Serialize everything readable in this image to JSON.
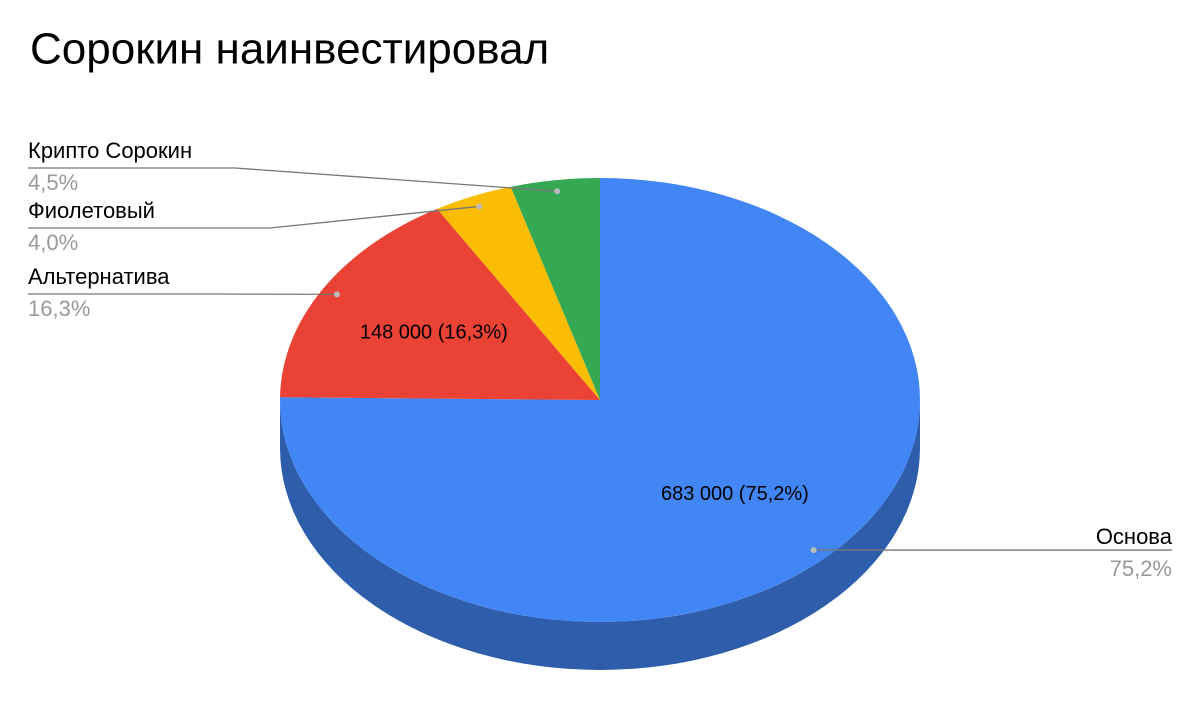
{
  "chart_data": {
    "type": "pie",
    "title": "Сорокин наинвестировал",
    "categories": [
      "Основа",
      "Альтернатива",
      "Фиолетовый",
      "Крипто Сорокин"
    ],
    "values": [
      75.2,
      16.3,
      4.0,
      4.5
    ],
    "value_labels": [
      "75,2%",
      "16,3%",
      "4,0%",
      "4,5%"
    ],
    "inner_value_labels": [
      "683 000 (75,2%)",
      "148 000 (16,3%)",
      null,
      null
    ],
    "colors": [
      "#4285f4",
      "#ea4335",
      "#fbbc04",
      "#34a853"
    ],
    "three_d": true
  }
}
